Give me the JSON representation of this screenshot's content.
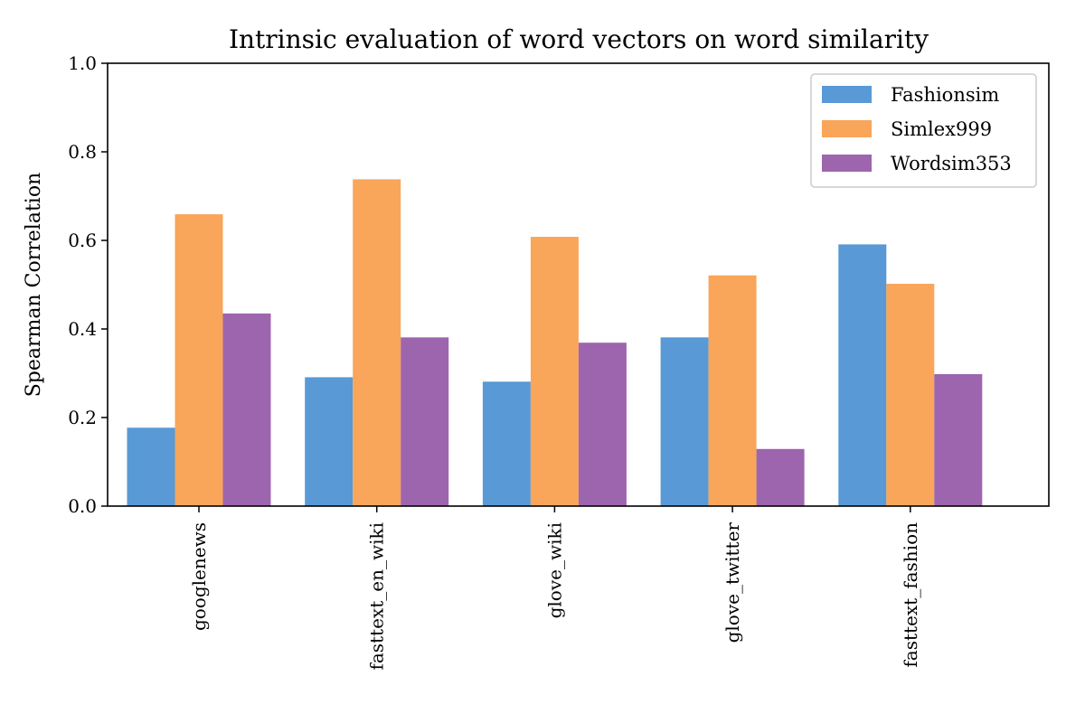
{
  "chart_data": {
    "type": "bar",
    "title": "Intrinsic evaluation of word vectors on word similarity",
    "xlabel": "",
    "ylabel": "Spearman Correlation",
    "ylim": [
      0,
      1.0
    ],
    "yticks": [
      "0.0",
      "0.2",
      "0.4",
      "0.6",
      "0.8",
      "1.0"
    ],
    "categories": [
      "googlenews",
      "fasttext_en_wiki",
      "glove_wiki",
      "glove_twitter",
      "fasttext_fashion"
    ],
    "series": [
      {
        "name": "Fashionsim",
        "color": "#5899d6",
        "values": [
          0.177,
          0.291,
          0.281,
          0.381,
          0.591
        ]
      },
      {
        "name": "Simlex999",
        "color": "#f9a55a",
        "values": [
          0.659,
          0.738,
          0.608,
          0.521,
          0.502
        ]
      },
      {
        "name": "Wordsim353",
        "color": "#9d65ad",
        "values": [
          0.435,
          0.381,
          0.369,
          0.129,
          0.298
        ]
      }
    ],
    "legend_position": "top-right",
    "grid": false
  }
}
